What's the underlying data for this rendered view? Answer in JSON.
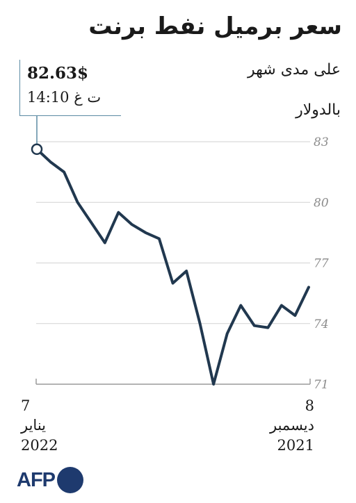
{
  "header": {
    "title": "سعر برميل نفط برنت",
    "subtitle": "على مدى شهر",
    "unit": "بالدولار"
  },
  "callout": {
    "price": "82.63$",
    "time": "14:10 ت غ"
  },
  "dates": {
    "end": {
      "day": "7",
      "month": "يناير",
      "year": "2022"
    },
    "start": {
      "day": "8",
      "month": "ديسمبر",
      "year": "2021"
    }
  },
  "brand": {
    "logo_text": "AFP",
    "color": "#1e3a6e"
  },
  "chart_data": {
    "type": "line",
    "title": "سعر برميل نفط برنت",
    "ylabel": "بالدولار",
    "ylim": [
      71,
      83
    ],
    "yticks": [
      "83",
      "80",
      "77",
      "74",
      "71"
    ],
    "x_direction": "right-to-left",
    "line_color": "#21384f",
    "grid": "horizontal",
    "series": [
      {
        "values": [
          75.8,
          74.4,
          74.9,
          73.8,
          73.9,
          74.9,
          73.5,
          71.0,
          74.0,
          76.6,
          76.0,
          78.2,
          78.5,
          78.9,
          79.5,
          78.0,
          79.0,
          80.0,
          81.5,
          82.0,
          82.63
        ]
      }
    ],
    "highlight": {
      "value": 82.63,
      "label": "82.63$"
    }
  }
}
